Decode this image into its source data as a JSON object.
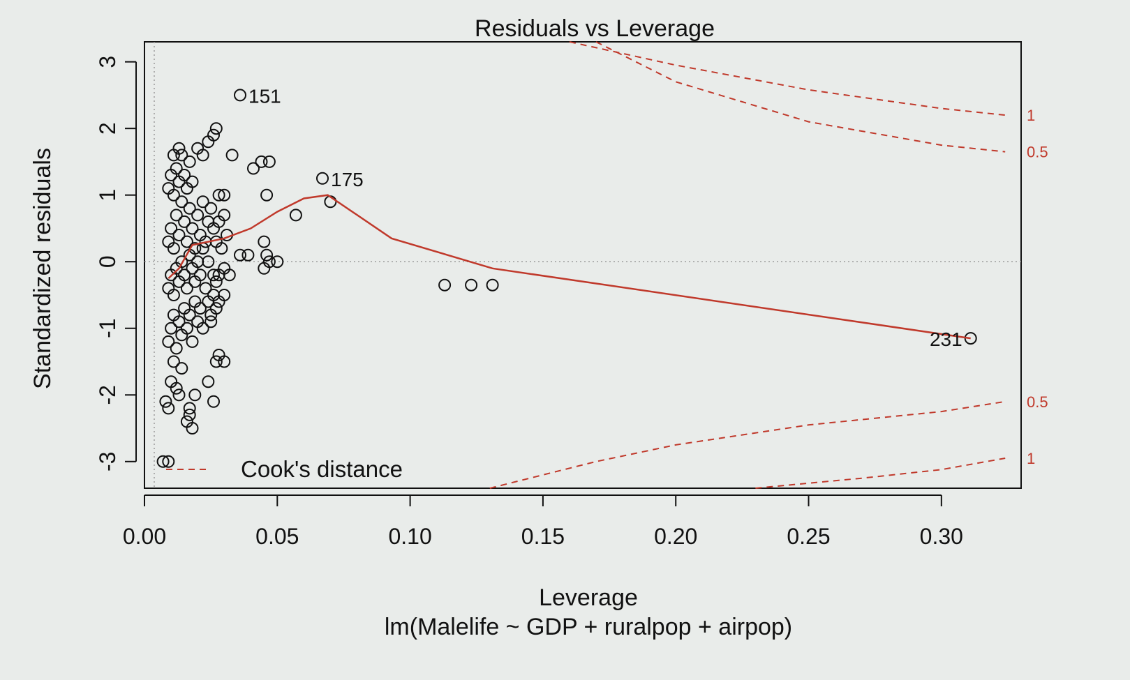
{
  "chart_data": {
    "type": "scatter",
    "title": "Residuals vs Leverage",
    "xlabel": "Leverage",
    "subtitle": "lm(Malelife ~ GDP + ruralpop + airpop)",
    "ylabel": "Standardized residuals",
    "xlim": [
      0.0,
      0.33
    ],
    "ylim": [
      -3.4,
      3.3
    ],
    "x_ticks": [
      0.0,
      0.05,
      0.1,
      0.15,
      0.2,
      0.25,
      0.3
    ],
    "x_tick_labels": [
      "0.00",
      "0.05",
      "0.10",
      "0.15",
      "0.20",
      "0.25",
      "0.30"
    ],
    "y_ticks": [
      -3,
      -2,
      -1,
      0,
      1,
      2,
      3
    ],
    "y_tick_labels": [
      "-3",
      "-2",
      "-1",
      "0",
      "1",
      "2",
      "3"
    ],
    "grid": false,
    "legend": {
      "position": "bottom-left",
      "entries": [
        {
          "label": "Cook's distance"
        }
      ]
    },
    "colors": {
      "smooth": "#c0392b",
      "cooks": "#c0392b",
      "points": "#111111",
      "reference": "#9a9a9a"
    },
    "points": [
      [
        0.007,
        -3.0
      ],
      [
        0.009,
        -3.0
      ],
      [
        0.008,
        -2.1
      ],
      [
        0.009,
        -2.2
      ],
      [
        0.01,
        -1.8
      ],
      [
        0.012,
        -1.9
      ],
      [
        0.013,
        -2.0
      ],
      [
        0.011,
        -1.5
      ],
      [
        0.014,
        -1.6
      ],
      [
        0.016,
        -2.4
      ],
      [
        0.017,
        -2.3
      ],
      [
        0.018,
        -2.5
      ],
      [
        0.017,
        -2.2
      ],
      [
        0.019,
        -2.0
      ],
      [
        0.024,
        -1.8
      ],
      [
        0.026,
        -2.1
      ],
      [
        0.027,
        -1.5
      ],
      [
        0.028,
        -1.4
      ],
      [
        0.03,
        -1.5
      ],
      [
        0.009,
        -1.2
      ],
      [
        0.01,
        -1.0
      ],
      [
        0.011,
        -0.8
      ],
      [
        0.012,
        -1.3
      ],
      [
        0.013,
        -0.9
      ],
      [
        0.014,
        -1.1
      ],
      [
        0.015,
        -0.7
      ],
      [
        0.016,
        -1.0
      ],
      [
        0.017,
        -0.8
      ],
      [
        0.018,
        -1.2
      ],
      [
        0.019,
        -0.6
      ],
      [
        0.02,
        -0.9
      ],
      [
        0.021,
        -0.7
      ],
      [
        0.022,
        -1.0
      ],
      [
        0.024,
        -0.6
      ],
      [
        0.025,
        -0.8
      ],
      [
        0.026,
        -0.5
      ],
      [
        0.028,
        -0.6
      ],
      [
        0.03,
        -0.5
      ],
      [
        0.025,
        -0.9
      ],
      [
        0.027,
        -0.7
      ],
      [
        0.009,
        -0.4
      ],
      [
        0.01,
        -0.2
      ],
      [
        0.011,
        -0.5
      ],
      [
        0.012,
        -0.1
      ],
      [
        0.013,
        -0.3
      ],
      [
        0.014,
        0.0
      ],
      [
        0.015,
        -0.2
      ],
      [
        0.016,
        -0.4
      ],
      [
        0.017,
        0.1
      ],
      [
        0.018,
        -0.1
      ],
      [
        0.019,
        -0.3
      ],
      [
        0.02,
        0.0
      ],
      [
        0.021,
        -0.2
      ],
      [
        0.022,
        0.2
      ],
      [
        0.023,
        -0.4
      ],
      [
        0.024,
        0.0
      ],
      [
        0.026,
        -0.2
      ],
      [
        0.027,
        -0.3
      ],
      [
        0.028,
        -0.2
      ],
      [
        0.03,
        -0.1
      ],
      [
        0.032,
        -0.2
      ],
      [
        0.009,
        0.3
      ],
      [
        0.01,
        0.5
      ],
      [
        0.011,
        0.2
      ],
      [
        0.012,
        0.7
      ],
      [
        0.013,
        0.4
      ],
      [
        0.014,
        0.9
      ],
      [
        0.015,
        0.6
      ],
      [
        0.016,
        0.3
      ],
      [
        0.017,
        0.8
      ],
      [
        0.018,
        0.5
      ],
      [
        0.019,
        0.2
      ],
      [
        0.02,
        0.7
      ],
      [
        0.021,
        0.4
      ],
      [
        0.022,
        0.9
      ],
      [
        0.023,
        0.3
      ],
      [
        0.024,
        0.6
      ],
      [
        0.025,
        0.8
      ],
      [
        0.026,
        0.5
      ],
      [
        0.027,
        0.3
      ],
      [
        0.028,
        0.6
      ],
      [
        0.029,
        0.2
      ],
      [
        0.03,
        0.7
      ],
      [
        0.031,
        0.4
      ],
      [
        0.03,
        1.0
      ],
      [
        0.028,
        1.0
      ],
      [
        0.009,
        1.1
      ],
      [
        0.01,
        1.3
      ],
      [
        0.011,
        1.0
      ],
      [
        0.012,
        1.4
      ],
      [
        0.013,
        1.2
      ],
      [
        0.014,
        1.6
      ],
      [
        0.015,
        1.3
      ],
      [
        0.016,
        1.1
      ],
      [
        0.017,
        1.5
      ],
      [
        0.018,
        1.2
      ],
      [
        0.02,
        1.7
      ],
      [
        0.022,
        1.6
      ],
      [
        0.024,
        1.8
      ],
      [
        0.026,
        1.9
      ],
      [
        0.027,
        2.0
      ],
      [
        0.011,
        1.6
      ],
      [
        0.013,
        1.7
      ],
      [
        0.033,
        1.6
      ],
      [
        0.041,
        1.4
      ],
      [
        0.044,
        1.5
      ],
      [
        0.047,
        1.5
      ],
      [
        0.046,
        1.0
      ],
      [
        0.039,
        0.1
      ],
      [
        0.036,
        0.1
      ],
      [
        0.046,
        0.1
      ],
      [
        0.045,
        0.3
      ],
      [
        0.047,
        0.0
      ],
      [
        0.05,
        0.0
      ],
      [
        0.045,
        -0.1
      ],
      [
        0.057,
        0.7
      ],
      [
        0.07,
        0.9
      ],
      [
        0.113,
        -0.35
      ],
      [
        0.123,
        -0.35
      ],
      [
        0.131,
        -0.35
      ],
      [
        0.036,
        2.5
      ],
      [
        0.067,
        1.25
      ],
      [
        0.311,
        -1.15
      ]
    ],
    "labeled_points": [
      {
        "label": "151",
        "x": 0.036,
        "y": 2.5
      },
      {
        "label": "175",
        "x": 0.067,
        "y": 1.25
      },
      {
        "label": "231",
        "x": 0.311,
        "y": -1.15
      }
    ],
    "smooth": [
      [
        0.009,
        -0.25
      ],
      [
        0.013,
        -0.1
      ],
      [
        0.018,
        0.25
      ],
      [
        0.024,
        0.3
      ],
      [
        0.03,
        0.35
      ],
      [
        0.04,
        0.5
      ],
      [
        0.05,
        0.75
      ],
      [
        0.06,
        0.95
      ],
      [
        0.069,
        1.0
      ],
      [
        0.093,
        0.35
      ],
      [
        0.131,
        -0.1
      ],
      [
        0.311,
        -1.15
      ]
    ],
    "cooks_lines": [
      {
        "label": "1",
        "points": [
          [
            0.16,
            3.3
          ],
          [
            0.2,
            2.95
          ],
          [
            0.25,
            2.58
          ],
          [
            0.3,
            2.3
          ],
          [
            0.324,
            2.2
          ]
        ]
      },
      {
        "label": "0.5",
        "points": [
          [
            0.17,
            3.3
          ],
          [
            0.2,
            2.7
          ],
          [
            0.25,
            2.1
          ],
          [
            0.3,
            1.75
          ],
          [
            0.324,
            1.65
          ]
        ]
      },
      {
        "label": "0.5",
        "points": [
          [
            0.13,
            -3.4
          ],
          [
            0.17,
            -3.0
          ],
          [
            0.2,
            -2.75
          ],
          [
            0.25,
            -2.45
          ],
          [
            0.3,
            -2.25
          ],
          [
            0.324,
            -2.1
          ]
        ]
      },
      {
        "label": "1",
        "points": [
          [
            0.23,
            -3.4
          ],
          [
            0.27,
            -3.25
          ],
          [
            0.3,
            -3.12
          ],
          [
            0.324,
            -2.95
          ]
        ]
      }
    ]
  }
}
